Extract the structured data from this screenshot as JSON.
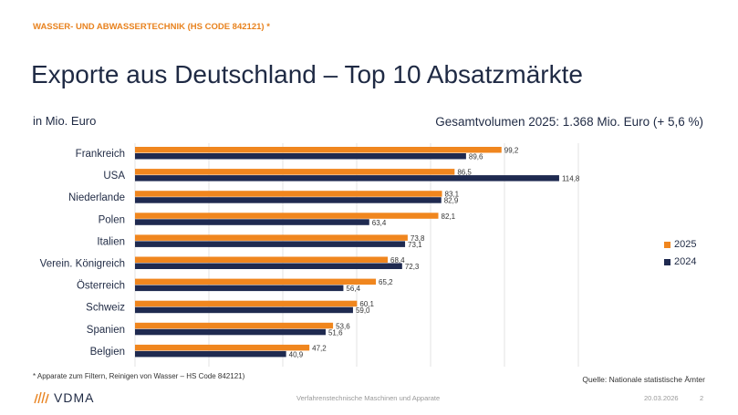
{
  "header": {
    "kicker": "WASSER- UND ABWASSERTECHNIK (HS CODE 842121) *",
    "title": "Exporte aus Deutschland – Top 10 Absatzmärkte",
    "unit": "in Mio. Euro",
    "total": "Gesamtvolumen 2025: 1.368 Mio. Euro (+ 5,6 %)"
  },
  "footer": {
    "footnote": "* Apparate zum Filtern, Reinigen von Wasser – HS Code 842121)",
    "source": "Quelle: Nationale statistische Ämter",
    "logo": "VDMA",
    "center": "Verfahrenstechnische Maschinen und Apparate",
    "date": "20.03.2026",
    "page": "2"
  },
  "chart_data": {
    "type": "bar",
    "orientation": "horizontal",
    "categories": [
      "Frankreich",
      "USA",
      "Niederlande",
      "Polen",
      "Italien",
      "Verein. Königreich",
      "Österreich",
      "Schweiz",
      "Spanien",
      "Belgien"
    ],
    "series": [
      {
        "name": "2025",
        "color": "#f0861e",
        "values": [
          99.2,
          86.5,
          83.1,
          82.1,
          73.8,
          68.4,
          65.2,
          60.1,
          53.6,
          47.2
        ],
        "labels": [
          "99,2",
          "86,5",
          "83,1",
          "82,1",
          "73,8",
          "68,4",
          "65,2",
          "60,1",
          "53,6",
          "47,2"
        ]
      },
      {
        "name": "2024",
        "color": "#1f2a50",
        "values": [
          89.6,
          114.8,
          82.9,
          63.4,
          73.1,
          72.3,
          56.4,
          59.0,
          51.6,
          40.9
        ],
        "labels": [
          "89,6",
          "114,8",
          "82,9",
          "63,4",
          "73,1",
          "72,3",
          "56,4",
          "59,0",
          "51,6",
          "40,9"
        ]
      }
    ],
    "xlim": [
      0,
      120
    ],
    "grid": true,
    "legend": "right"
  }
}
